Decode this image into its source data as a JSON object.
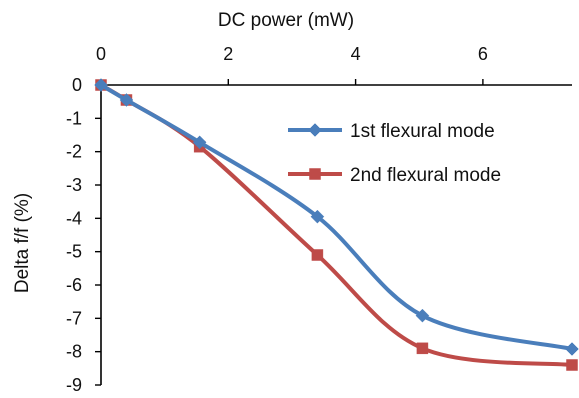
{
  "chart_data": {
    "type": "line",
    "title": "",
    "xlabel": "DC power (mW)",
    "ylabel": "Delta f/f (%)",
    "xlim": [
      0,
      7.4
    ],
    "ylim": [
      -9,
      0
    ],
    "xticks": [
      0,
      2,
      4,
      6
    ],
    "yticks": [
      0,
      -1,
      -2,
      -3,
      -4,
      -5,
      -6,
      -7,
      -8,
      -9
    ],
    "xaxis_position": "top",
    "grid": false,
    "legend_position": "right",
    "series": [
      {
        "name": "1st flexural mode",
        "color": "#4a7ebb",
        "marker": "diamond",
        "x": [
          0,
          0.4,
          1.55,
          3.4,
          5.05,
          7.4
        ],
        "y": [
          0,
          -0.45,
          -1.72,
          -3.95,
          -6.92,
          -7.92
        ]
      },
      {
        "name": "2nd flexural mode",
        "color": "#be4b48",
        "marker": "square",
        "x": [
          0,
          0.4,
          1.55,
          3.4,
          5.05,
          7.4
        ],
        "y": [
          0,
          -0.45,
          -1.85,
          -5.1,
          -7.9,
          -8.4
        ]
      }
    ]
  }
}
